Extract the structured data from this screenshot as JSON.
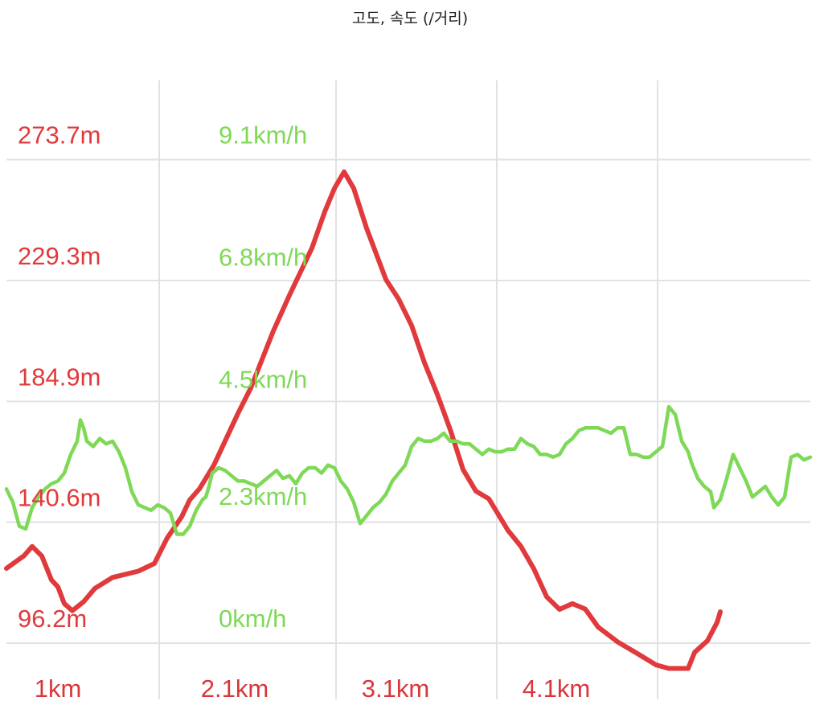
{
  "title": "고도, 속도 (/거리)",
  "colors": {
    "elevation": "#e03a3c",
    "speed": "#7ed957",
    "grid": "#e2e2e2",
    "xlabel": "#d9363b"
  },
  "chart_data": {
    "type": "line",
    "title": "고도, 속도 (/거리)",
    "x_ticks": [
      {
        "x": 1,
        "label": "1km"
      },
      {
        "x": 2.1,
        "label": "2.1km"
      },
      {
        "x": 3.1,
        "label": "3.1km"
      },
      {
        "x": 4.1,
        "label": "4.1km"
      }
    ],
    "xlim": [
      0.05,
      5.05
    ],
    "elevation_axis": {
      "unit": "m",
      "ylim": [
        84.5,
        290.3
      ],
      "ticks": [
        {
          "value": 96.2,
          "label": "96.2m"
        },
        {
          "value": 140.6,
          "label": "140.6m"
        },
        {
          "value": 184.9,
          "label": "184.9m"
        },
        {
          "value": 229.3,
          "label": "229.3m"
        },
        {
          "value": 273.7,
          "label": "273.7m"
        }
      ]
    },
    "speed_axis": {
      "unit": "km/h",
      "ylim": [
        -0.6,
        10.0
      ],
      "ticks": [
        {
          "value": 0,
          "label": "0km/h"
        },
        {
          "value": 2.3,
          "label": "2.3km/h"
        },
        {
          "value": 4.5,
          "label": "4.5km/h"
        },
        {
          "value": 6.8,
          "label": "6.8km/h"
        },
        {
          "value": 9.1,
          "label": "9.1km/h"
        }
      ]
    },
    "grid": true,
    "series": [
      {
        "axis": "elevation",
        "color": "#e03a3c",
        "points": [
          [
            0.05,
            123.6
          ],
          [
            0.16,
            128.3
          ],
          [
            0.21,
            131.7
          ],
          [
            0.27,
            128.2
          ],
          [
            0.33,
            119.4
          ],
          [
            0.37,
            116.9
          ],
          [
            0.41,
            110.7
          ],
          [
            0.46,
            108.1
          ],
          [
            0.53,
            111.4
          ],
          [
            0.6,
            116.3
          ],
          [
            0.71,
            120.3
          ],
          [
            0.87,
            122.6
          ],
          [
            0.97,
            125.4
          ],
          [
            1.05,
            134.8
          ],
          [
            1.14,
            142.6
          ],
          [
            1.19,
            148.8
          ],
          [
            1.25,
            152.8
          ],
          [
            1.34,
            161.5
          ],
          [
            1.49,
            180.5
          ],
          [
            1.57,
            189.9
          ],
          [
            1.71,
            210.8
          ],
          [
            1.81,
            223.9
          ],
          [
            1.95,
            241.2
          ],
          [
            2.03,
            254.6
          ],
          [
            2.09,
            263.1
          ],
          [
            2.15,
            269.2
          ],
          [
            2.21,
            263.1
          ],
          [
            2.29,
            248.5
          ],
          [
            2.41,
            229.7
          ],
          [
            2.49,
            222.4
          ],
          [
            2.57,
            212.8
          ],
          [
            2.65,
            199.1
          ],
          [
            2.73,
            187.5
          ],
          [
            2.81,
            174.6
          ],
          [
            2.89,
            159.9
          ],
          [
            2.97,
            152.0
          ],
          [
            3.05,
            149.2
          ],
          [
            3.17,
            137.5
          ],
          [
            3.25,
            131.7
          ],
          [
            3.33,
            123.5
          ],
          [
            3.41,
            113.2
          ],
          [
            3.49,
            108.6
          ],
          [
            3.57,
            110.7
          ],
          [
            3.65,
            108.7
          ],
          [
            3.73,
            102.1
          ],
          [
            3.85,
            96.7
          ],
          [
            3.97,
            92.5
          ],
          [
            4.09,
            88.2
          ],
          [
            4.17,
            86.9
          ],
          [
            4.29,
            86.9
          ],
          [
            4.33,
            92.8
          ],
          [
            4.41,
            97.1
          ],
          [
            4.47,
            103.8
          ],
          [
            4.49,
            107.7
          ]
        ]
      },
      {
        "axis": "speed",
        "color": "#7ed957",
        "points": [
          [
            0.05,
            2.9
          ],
          [
            0.09,
            2.65
          ],
          [
            0.13,
            2.2
          ],
          [
            0.17,
            2.15
          ],
          [
            0.21,
            2.55
          ],
          [
            0.25,
            2.75
          ],
          [
            0.29,
            2.9
          ],
          [
            0.33,
            3.0
          ],
          [
            0.37,
            3.05
          ],
          [
            0.41,
            3.2
          ],
          [
            0.45,
            3.55
          ],
          [
            0.49,
            3.8
          ],
          [
            0.51,
            4.2
          ],
          [
            0.53,
            4.05
          ],
          [
            0.55,
            3.8
          ],
          [
            0.57,
            3.75
          ],
          [
            0.59,
            3.7
          ],
          [
            0.63,
            3.85
          ],
          [
            0.67,
            3.75
          ],
          [
            0.71,
            3.8
          ],
          [
            0.75,
            3.6
          ],
          [
            0.79,
            3.3
          ],
          [
            0.83,
            2.85
          ],
          [
            0.87,
            2.6
          ],
          [
            0.91,
            2.55
          ],
          [
            0.95,
            2.5
          ],
          [
            0.99,
            2.6
          ],
          [
            1.03,
            2.55
          ],
          [
            1.07,
            2.45
          ],
          [
            1.11,
            2.05
          ],
          [
            1.15,
            2.05
          ],
          [
            1.19,
            2.2
          ],
          [
            1.23,
            2.5
          ],
          [
            1.27,
            2.7
          ],
          [
            1.29,
            2.75
          ],
          [
            1.31,
            2.95
          ],
          [
            1.33,
            3.2
          ],
          [
            1.37,
            3.3
          ],
          [
            1.41,
            3.25
          ],
          [
            1.45,
            3.15
          ],
          [
            1.49,
            3.05
          ],
          [
            1.53,
            3.05
          ],
          [
            1.57,
            3.0
          ],
          [
            1.61,
            2.95
          ],
          [
            1.65,
            3.05
          ],
          [
            1.69,
            3.15
          ],
          [
            1.73,
            3.25
          ],
          [
            1.77,
            3.1
          ],
          [
            1.81,
            3.15
          ],
          [
            1.85,
            3.0
          ],
          [
            1.89,
            3.2
          ],
          [
            1.93,
            3.3
          ],
          [
            1.97,
            3.3
          ],
          [
            2.01,
            3.2
          ],
          [
            2.05,
            3.35
          ],
          [
            2.09,
            3.3
          ],
          [
            2.13,
            3.05
          ],
          [
            2.17,
            2.9
          ],
          [
            2.21,
            2.65
          ],
          [
            2.25,
            2.25
          ],
          [
            2.29,
            2.4
          ],
          [
            2.33,
            2.55
          ],
          [
            2.37,
            2.65
          ],
          [
            2.41,
            2.8
          ],
          [
            2.45,
            3.05
          ],
          [
            2.49,
            3.2
          ],
          [
            2.53,
            3.35
          ],
          [
            2.57,
            3.7
          ],
          [
            2.61,
            3.85
          ],
          [
            2.65,
            3.8
          ],
          [
            2.69,
            3.8
          ],
          [
            2.73,
            3.85
          ],
          [
            2.77,
            3.95
          ],
          [
            2.81,
            3.8
          ],
          [
            2.85,
            3.8
          ],
          [
            2.89,
            3.75
          ],
          [
            2.93,
            3.75
          ],
          [
            2.97,
            3.65
          ],
          [
            3.01,
            3.55
          ],
          [
            3.05,
            3.65
          ],
          [
            3.09,
            3.6
          ],
          [
            3.13,
            3.6
          ],
          [
            3.17,
            3.65
          ],
          [
            3.21,
            3.65
          ],
          [
            3.25,
            3.85
          ],
          [
            3.29,
            3.75
          ],
          [
            3.33,
            3.7
          ],
          [
            3.37,
            3.55
          ],
          [
            3.41,
            3.55
          ],
          [
            3.45,
            3.5
          ],
          [
            3.49,
            3.55
          ],
          [
            3.53,
            3.75
          ],
          [
            3.57,
            3.85
          ],
          [
            3.61,
            4.0
          ],
          [
            3.65,
            4.05
          ],
          [
            3.69,
            4.05
          ],
          [
            3.73,
            4.05
          ],
          [
            3.77,
            4.0
          ],
          [
            3.81,
            3.95
          ],
          [
            3.85,
            4.05
          ],
          [
            3.89,
            4.05
          ],
          [
            3.93,
            3.55
          ],
          [
            3.97,
            3.55
          ],
          [
            4.01,
            3.5
          ],
          [
            4.05,
            3.5
          ],
          [
            4.09,
            3.6
          ],
          [
            4.13,
            3.7
          ],
          [
            4.17,
            4.45
          ],
          [
            4.21,
            4.3
          ],
          [
            4.25,
            3.8
          ],
          [
            4.29,
            3.6
          ],
          [
            4.31,
            3.4
          ],
          [
            4.35,
            3.1
          ],
          [
            4.39,
            2.95
          ],
          [
            4.43,
            2.85
          ],
          [
            4.45,
            2.55
          ],
          [
            4.49,
            2.7
          ],
          [
            4.53,
            3.1
          ],
          [
            4.57,
            3.55
          ],
          [
            4.61,
            3.3
          ],
          [
            4.65,
            3.05
          ],
          [
            4.69,
            2.75
          ],
          [
            4.73,
            2.85
          ],
          [
            4.77,
            2.95
          ],
          [
            4.81,
            2.75
          ],
          [
            4.85,
            2.6
          ],
          [
            4.89,
            2.75
          ],
          [
            4.93,
            3.5
          ],
          [
            4.97,
            3.55
          ],
          [
            5.01,
            3.45
          ],
          [
            5.05,
            3.5
          ]
        ]
      }
    ]
  }
}
